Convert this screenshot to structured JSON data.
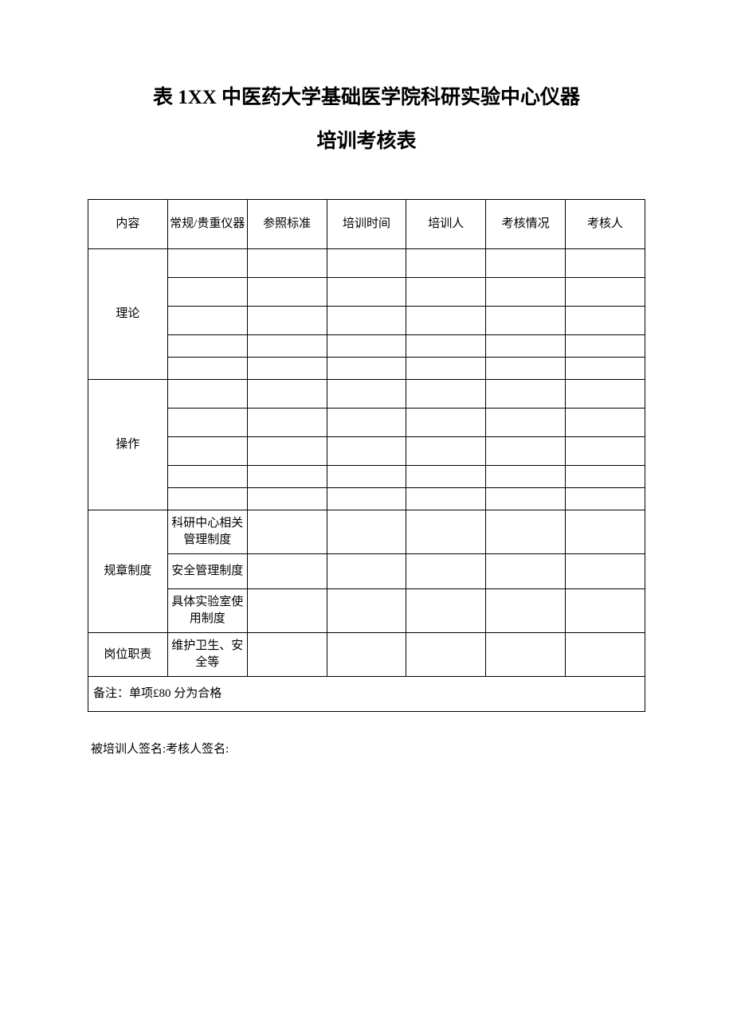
{
  "title": {
    "line1": "表 1XX 中医药大学基础医学院科研实验中心仪器",
    "line2": "培训考核表"
  },
  "headers": {
    "col1": "内容",
    "col2": "常规/贵重仪器",
    "col3": "参照标准",
    "col4": "培训时间",
    "col5": "培训人",
    "col6": "考核情况",
    "col7": "考核人"
  },
  "sections": {
    "theory": "理论",
    "operation": "操作",
    "rules": "规章制度",
    "duties": "岗位职责"
  },
  "rules_items": {
    "item1": "科研中心相关管理制度",
    "item2": "安全管理制度",
    "item3": "具体实验室使用制度"
  },
  "duties_items": {
    "item1": "维护卫生、安全等"
  },
  "footer_note": "备注：单项£80 分为合格",
  "signatures": "被培训人签名:考核人签名:",
  "colors": {
    "background": "#ffffff",
    "border": "#000000",
    "text": "#000000"
  },
  "typography": {
    "title_fontsize": 25,
    "body_fontsize": 15,
    "font_family": "SimSun"
  }
}
